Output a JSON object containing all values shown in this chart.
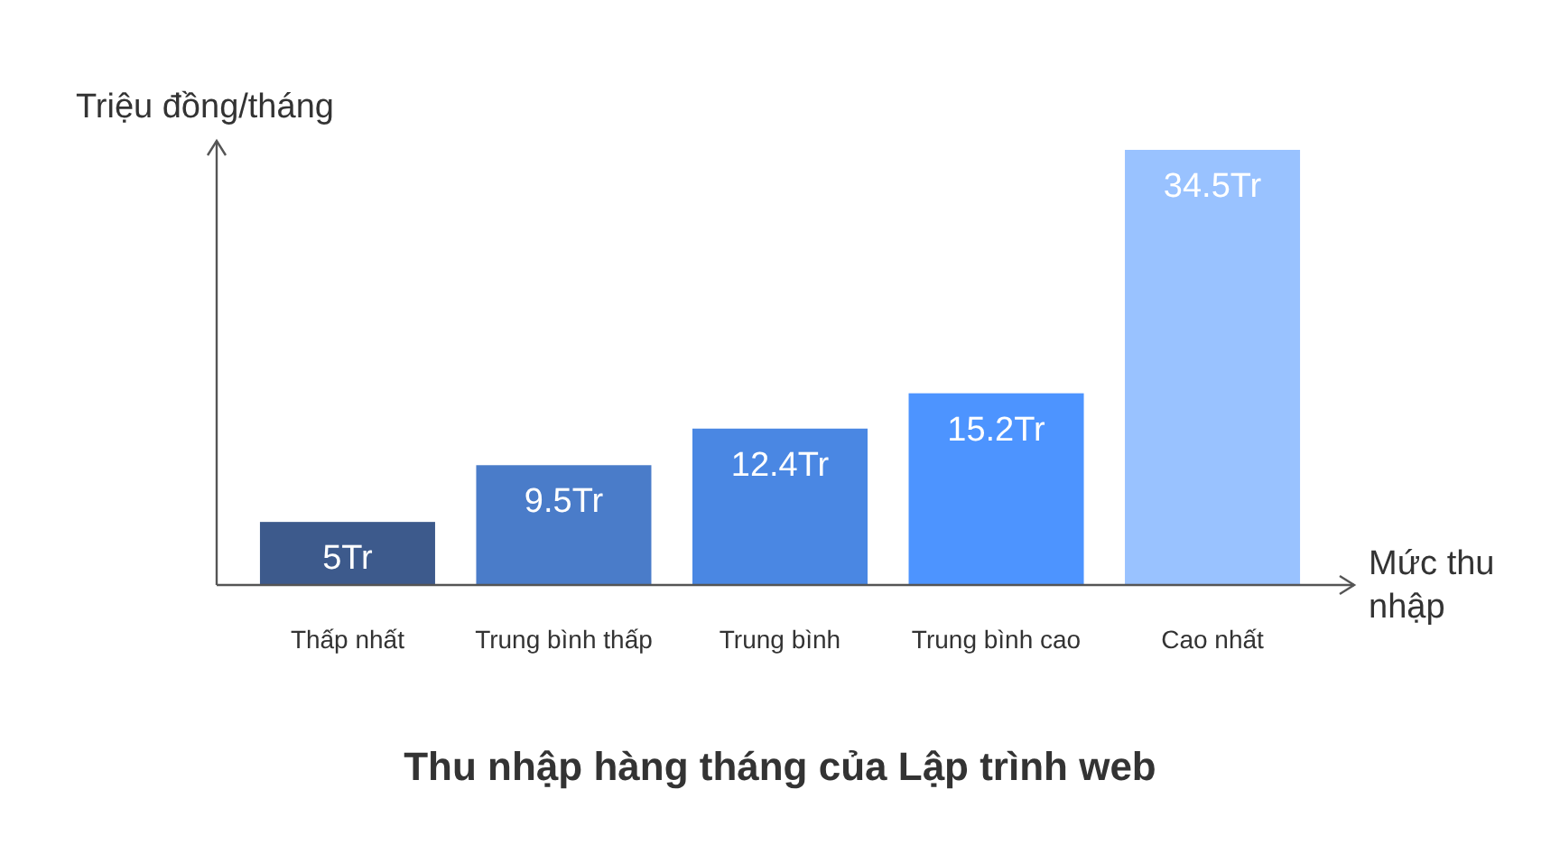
{
  "chart_data": {
    "type": "bar",
    "title": "Thu nhập hàng tháng của Lập trình web",
    "xlabel": "Mức thu nhập",
    "ylabel": "Triệu đồng/tháng",
    "categories": [
      "Thấp nhất",
      "Trung bình thấp",
      "Trung bình",
      "Trung bình cao",
      "Cao nhất"
    ],
    "values": [
      5,
      9.5,
      12.4,
      15.2,
      34.5
    ],
    "value_labels": [
      "5Tr",
      "9.5Tr",
      "12.4Tr",
      "15.2Tr",
      "34.5Tr"
    ],
    "colors": [
      "#3d5a8c",
      "#4a7cc9",
      "#4a87e3",
      "#4d94ff",
      "#99c2ff"
    ]
  }
}
